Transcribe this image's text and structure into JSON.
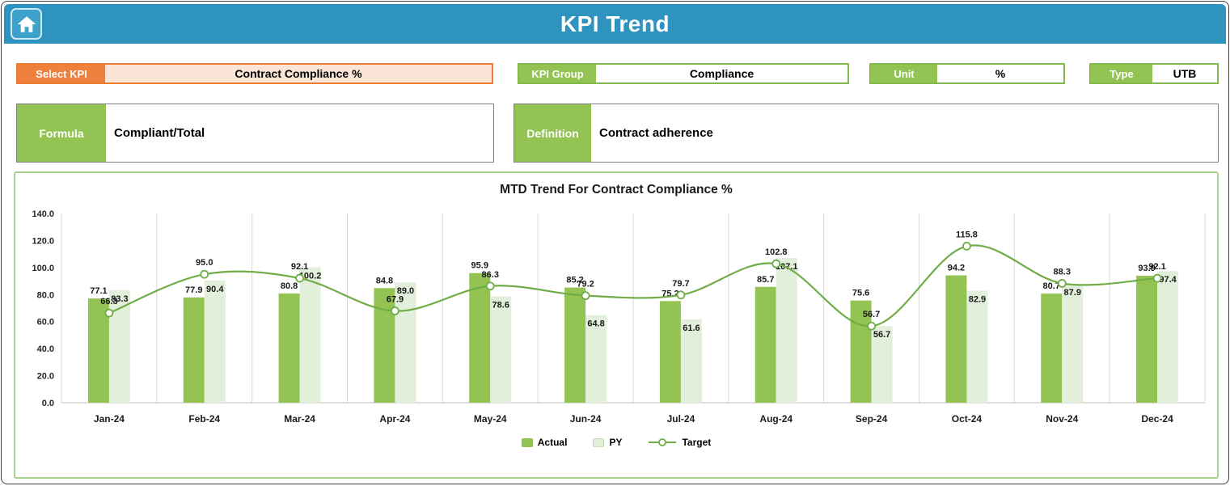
{
  "header": {
    "title": "KPI Trend"
  },
  "controls": {
    "select_kpi": {
      "label": "Select KPI",
      "value": "Contract Compliance %"
    },
    "kpi_group": {
      "label": "KPI Group",
      "value": "Compliance"
    },
    "unit": {
      "label": "Unit",
      "value": "%"
    },
    "type": {
      "label": "Type",
      "value": "UTB"
    },
    "formula": {
      "label": "Formula",
      "value": "Compliant/Total"
    },
    "definition": {
      "label": "Definition",
      "value": "Contract adherence"
    }
  },
  "chart_data": {
    "type": "bar+line",
    "title": "MTD Trend For Contract Compliance %",
    "categories": [
      "Jan-24",
      "Feb-24",
      "Mar-24",
      "Apr-24",
      "May-24",
      "Jun-24",
      "Jul-24",
      "Aug-24",
      "Sep-24",
      "Oct-24",
      "Nov-24",
      "Dec-24"
    ],
    "series": [
      {
        "name": "Actual",
        "type": "bar",
        "color": "#92c353",
        "values": [
          77.1,
          77.9,
          80.8,
          84.8,
          95.9,
          85.2,
          75.2,
          85.7,
          75.6,
          94.2,
          80.7,
          93.9
        ]
      },
      {
        "name": "PY",
        "type": "bar",
        "color": "#e2efda",
        "values": [
          83.3,
          90.4,
          100.2,
          89.0,
          78.6,
          64.8,
          61.6,
          107.1,
          56.7,
          82.9,
          87.9,
          97.4
        ]
      },
      {
        "name": "Target",
        "type": "line",
        "color": "#70ad47",
        "values": [
          66.3,
          95.0,
          92.1,
          67.9,
          86.3,
          79.2,
          79.7,
          102.8,
          56.7,
          115.8,
          88.3,
          92.1
        ]
      }
    ],
    "ylim": [
      0,
      140
    ],
    "ytick_step": 20,
    "yaxis_format": "0.0",
    "grid": "vertical",
    "legend_position": "bottom"
  },
  "colors": {
    "header_bg": "#2e93be",
    "accent_orange": "#ed7d31",
    "orange_fill": "#fbe5d6",
    "accent_green": "#92c353",
    "py_fill": "#e2efda",
    "target_line": "#70ad47",
    "chart_border": "#a9d18e",
    "gridline": "#d9d9d9"
  }
}
